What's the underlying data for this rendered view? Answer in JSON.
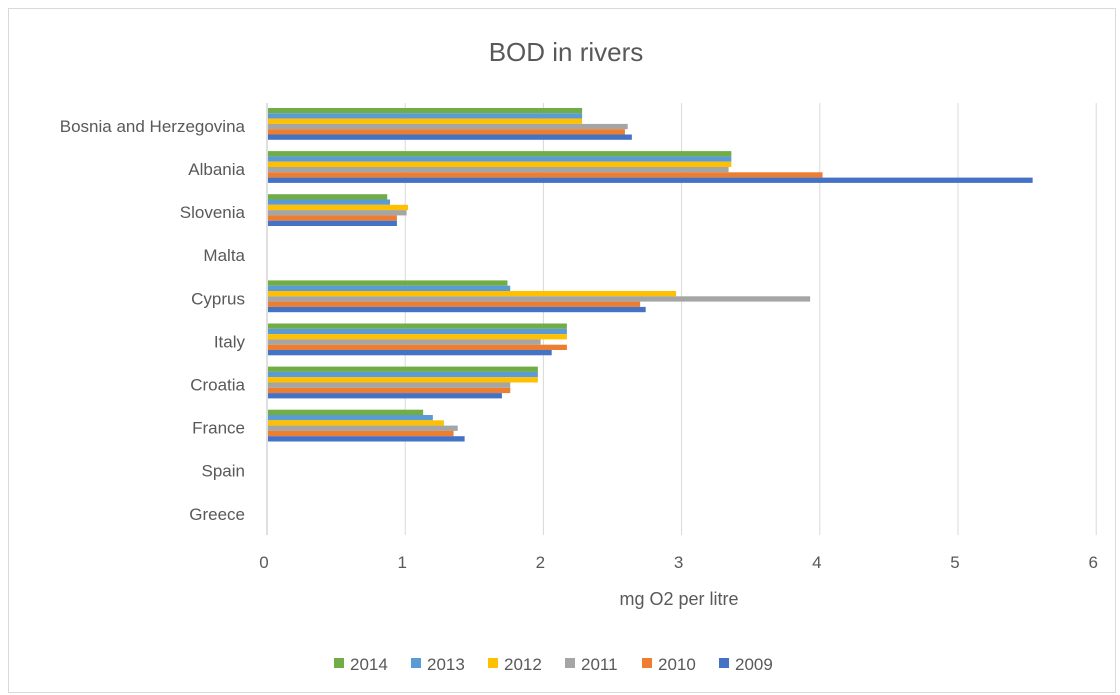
{
  "chart_data": {
    "type": "bar",
    "orientation": "horizontal",
    "title": "BOD in rivers",
    "xlabel": "mg O2 per litre",
    "ylabel": "",
    "xlim": [
      0,
      6
    ],
    "xticks": [
      "0",
      "1",
      "2",
      "3",
      "4",
      "5",
      "6"
    ],
    "grid": "vertical",
    "legend_position": "bottom",
    "categories": [
      "Bosnia and Herzegovina",
      "Albania",
      "Slovenia",
      "Malta",
      "Cyprus",
      "Italy",
      "Croatia",
      "France",
      "Spain",
      "Greece"
    ],
    "series": [
      {
        "name": "2014",
        "color": "#70ad47",
        "values": [
          2.28,
          3.36,
          0.87,
          null,
          1.74,
          2.17,
          1.96,
          1.13,
          null,
          null
        ]
      },
      {
        "name": "2013",
        "color": "#5b9bd5",
        "values": [
          2.28,
          3.36,
          0.89,
          null,
          1.76,
          2.17,
          1.96,
          1.2,
          null,
          null
        ]
      },
      {
        "name": "2012",
        "color": "#ffc000",
        "values": [
          2.28,
          3.36,
          1.02,
          null,
          2.96,
          2.17,
          1.96,
          1.28,
          null,
          null
        ]
      },
      {
        "name": "2011",
        "color": "#a5a5a5",
        "values": [
          2.61,
          3.34,
          1.01,
          null,
          3.93,
          1.98,
          1.76,
          1.38,
          null,
          null
        ]
      },
      {
        "name": "2010",
        "color": "#ed7d31",
        "values": [
          2.59,
          4.02,
          0.94,
          null,
          2.7,
          2.17,
          1.76,
          1.35,
          null,
          null
        ]
      },
      {
        "name": "2009",
        "color": "#4472c4",
        "values": [
          2.64,
          5.54,
          0.94,
          null,
          2.74,
          2.06,
          1.7,
          1.43,
          null,
          null
        ]
      }
    ]
  }
}
